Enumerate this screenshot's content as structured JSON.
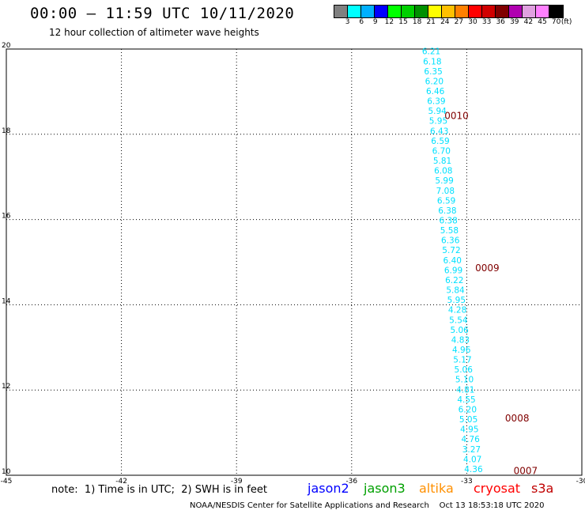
{
  "header": {
    "title": "00:00 – 11:59 UTC 10/11/2020",
    "subtitle": "12 hour collection of altimeter wave heights"
  },
  "legend": {
    "unit": "(ft)",
    "colors": [
      "#808080",
      "#00ffff",
      "#00b0ff",
      "#0000ff",
      "#00ff00",
      "#00d000",
      "#009000",
      "#ffff00",
      "#ffc000",
      "#ff8000",
      "#ff0000",
      "#d00000",
      "#800000",
      "#b000b0",
      "#e0a0e0",
      "#ff80ff",
      "#000000"
    ],
    "values": [
      "3",
      "6",
      "9",
      "12",
      "15",
      "18",
      "21",
      "24",
      "27",
      "30",
      "33",
      "36",
      "39",
      "42",
      "45",
      "70"
    ]
  },
  "axes": {
    "lat_ticks": [
      "20",
      "18",
      "16",
      "14",
      "12",
      "10"
    ],
    "lon_ticks": [
      "-45",
      "-42",
      "-39",
      "-36",
      "-33",
      "-30"
    ],
    "lat_range": [
      10,
      20
    ],
    "lon_range": [
      -45,
      -30
    ],
    "grid": "dotted"
  },
  "track": {
    "satellite": "jason3",
    "color": "#00e0ff",
    "start": {
      "lon": -34.0,
      "lat": 19.95
    },
    "end": {
      "lon": -32.9,
      "lat": 10.15
    },
    "heights": [
      "6.21",
      "6.18",
      "6.35",
      "6.20",
      "6.46",
      "6.39",
      "5.94",
      "5.95",
      "6.43",
      "6.59",
      "6.70",
      "5.81",
      "6.08",
      "5.99",
      "7.08",
      "6.59",
      "6.38",
      "6.38",
      "5.58",
      "6.36",
      "5.72",
      "6.40",
      "6.99",
      "6.22",
      "5.84",
      "5.95",
      "4.28",
      "5.54",
      "5.06",
      "4.83",
      "4.96",
      "5.17",
      "5.06",
      "5.10",
      "4.81",
      "4.55",
      "6.20",
      "5.05",
      "4.95",
      "4.76",
      "3.27",
      "4.07",
      "4.36"
    ]
  },
  "time_labels": [
    {
      "text": "0010",
      "lon": -33.58,
      "lat": 18.36
    },
    {
      "text": "0009",
      "lon": -32.78,
      "lat": 14.79
    },
    {
      "text": "0008",
      "lon": -32.0,
      "lat": 11.26
    },
    {
      "text": "0007",
      "lon": -31.78,
      "lat": 10.03
    }
  ],
  "time_label_color": "#800000",
  "note": "note:  1) Time is in UTC;  2) SWH is in feet",
  "satellites": [
    {
      "name": "jason2",
      "color": "#0000ff"
    },
    {
      "name": "jason3",
      "color": "#00a000"
    },
    {
      "name": "altika",
      "color": "#ff9000"
    },
    {
      "name": "cryosat",
      "color": "#ff0000"
    },
    {
      "name": "s3a",
      "color": "#c00000"
    }
  ],
  "footer": "NOAA/NESDIS Center for Satellite Applications and Research    Oct 13 18:53:18 UTC 2020"
}
